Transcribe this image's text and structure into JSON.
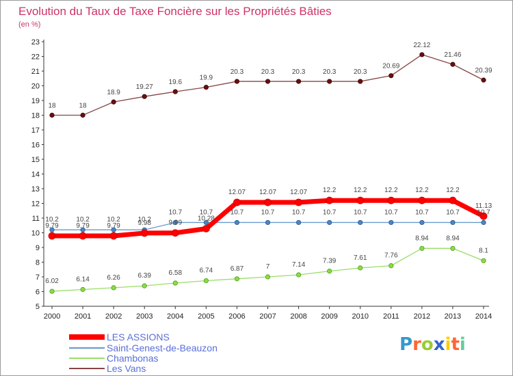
{
  "title": "Evolution du Taux de Taxe Foncière sur les Propriétés Bâties",
  "subtitle": "(en %)",
  "logo": "Proxiti",
  "colors": {
    "title": "#cc3366",
    "grid": "#cccccc",
    "axis": "#333333"
  },
  "chart_data": {
    "type": "line",
    "title": "Evolution du Taux de Taxe Foncière sur les Propriétés Bâties",
    "subtitle": "(en %)",
    "xlabel": "",
    "ylabel": "",
    "x": [
      2000,
      2001,
      2002,
      2003,
      2004,
      2005,
      2006,
      2007,
      2008,
      2009,
      2010,
      2011,
      2012,
      2013,
      2014
    ],
    "x_labels": [
      "2000",
      "2001",
      "2002",
      "2003",
      "2004",
      "2005",
      "2006",
      "2007",
      "2008",
      "2009",
      "2010",
      "2011",
      "2012",
      "2013",
      "2014"
    ],
    "ylim": [
      5,
      23
    ],
    "yticks": [
      5,
      6,
      7,
      8,
      9,
      10,
      11,
      12,
      13,
      14,
      15,
      16,
      17,
      18,
      19,
      20,
      21,
      22,
      23
    ],
    "grid": false,
    "legend_position": "bottom-left",
    "series": [
      {
        "name": "LES ASSIONS",
        "color": "#ff0000",
        "values": [
          9.79,
          9.79,
          9.79,
          9.98,
          9.99,
          10.28,
          12.07,
          12.07,
          12.07,
          12.2,
          12.2,
          12.2,
          12.2,
          12.2,
          11.13
        ],
        "labels": [
          "9.79",
          "9.79",
          "9.79",
          "9.98",
          "9.99",
          "10.28",
          "12.07",
          "12.07",
          "12.07",
          "12.2",
          "12.2",
          "12.2",
          "12.2",
          "12.2",
          "11.13"
        ]
      },
      {
        "name": "Saint-Genest-de-Beauzon",
        "color": "#6699cc",
        "values": [
          10.2,
          10.2,
          10.2,
          10.2,
          10.7,
          10.7,
          10.7,
          10.7,
          10.7,
          10.7,
          10.7,
          10.7,
          10.7,
          10.7,
          10.7
        ],
        "labels": [
          "10.2",
          "10.2",
          "10.2",
          "10.2",
          "10.7",
          "10.7",
          "10.7",
          "10.7",
          "10.7",
          "10.7",
          "10.7",
          "10.7",
          "10.7",
          "10.7",
          "10.7"
        ]
      },
      {
        "name": "Chambonas",
        "color": "#99dd66",
        "values": [
          6.02,
          6.14,
          6.26,
          6.39,
          6.58,
          6.74,
          6.87,
          7,
          7.14,
          7.39,
          7.61,
          7.76,
          8.94,
          8.94,
          8.1
        ],
        "labels": [
          "6.02",
          "6.14",
          "6.26",
          "6.39",
          "6.58",
          "6.74",
          "6.87",
          "7",
          "7.14",
          "7.39",
          "7.61",
          "7.76",
          "8.94",
          "8.94",
          "8.1"
        ]
      },
      {
        "name": "Les Vans",
        "color": "#884444",
        "values": [
          18,
          18,
          18.9,
          19.27,
          19.6,
          19.9,
          20.3,
          20.3,
          20.3,
          20.3,
          20.3,
          20.69,
          22.12,
          21.46,
          20.39
        ],
        "labels": [
          "18",
          "18",
          "18.9",
          "19.27",
          "19.6",
          "19.9",
          "20.3",
          "20.3",
          "20.3",
          "20.3",
          "20.3",
          "20.69",
          "22.12",
          "21.46",
          "20.39"
        ]
      }
    ]
  }
}
